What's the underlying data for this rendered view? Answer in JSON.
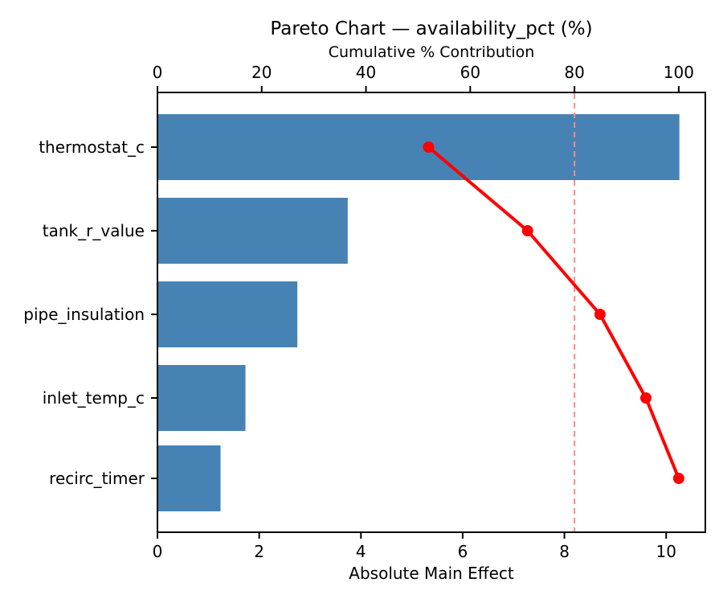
{
  "figure": {
    "background": "#ffffff"
  },
  "chart_data": {
    "type": "bar",
    "subtype": "pareto",
    "orientation": "horizontal",
    "title": "Pareto Chart — availability_pct (%)",
    "axes": {
      "top_label": "Cumulative % Contribution",
      "bottom_label": "Absolute Main Effect",
      "top_ticks": [
        0,
        20,
        40,
        60,
        80,
        100
      ],
      "bottom_ticks": [
        0,
        2,
        4,
        6,
        8,
        10
      ],
      "bottom_xlim": [
        0,
        10.77
      ],
      "top_xlim": [
        0,
        105.1
      ]
    },
    "categories": [
      "thermostat_c",
      "tank_r_value",
      "pipe_insulation",
      "inlet_temp_c",
      "recirc_timer"
    ],
    "series": [
      {
        "name": "Absolute Main Effect",
        "kind": "bar",
        "values": [
          10.26,
          3.74,
          2.75,
          1.73,
          1.24
        ]
      },
      {
        "name": "Cumulative % Contribution",
        "kind": "line",
        "values": [
          52.0,
          71.0,
          84.9,
          93.7,
          100.0
        ]
      }
    ],
    "threshold_pct": 80,
    "grid": false,
    "legend_position": "none",
    "colors": {
      "bar": "#4682B4",
      "line": "#FF0000",
      "threshold": "#FF8A8A",
      "spine": "#000000",
      "text": "#000000"
    }
  }
}
